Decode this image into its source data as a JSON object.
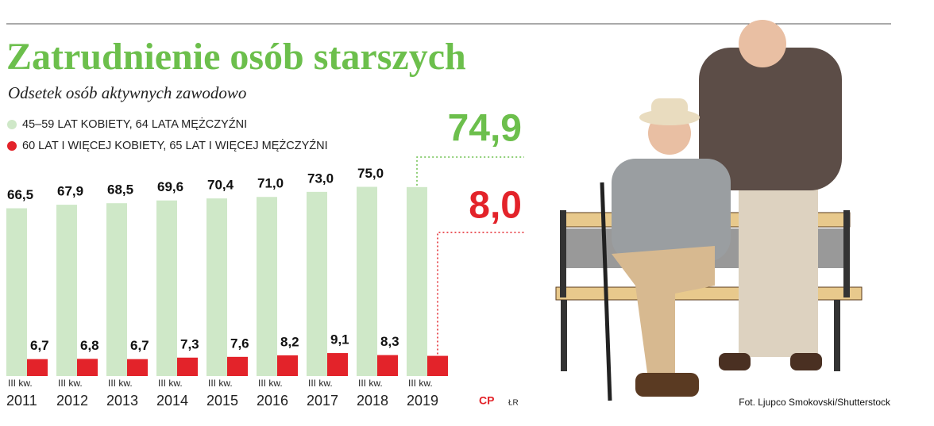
{
  "title": "Zatrudnienie osób starszych",
  "subtitle": "Odsetek osób aktywnych zawodowo",
  "chart_data": {
    "type": "bar",
    "period_label": "III kw.",
    "categories": [
      "2011",
      "2012",
      "2013",
      "2014",
      "2015",
      "2016",
      "2017",
      "2018",
      "2019"
    ],
    "ylim": [
      0,
      100
    ],
    "series": [
      {
        "name": "45–59 LAT KOBIETY, 64 LATA MĘŻCZYŹNI",
        "color": "#cfe8c8",
        "values": [
          66.5,
          67.9,
          68.5,
          69.6,
          70.4,
          71.0,
          73.0,
          75.0,
          74.9
        ],
        "value_labels": [
          "66,5",
          "67,9",
          "68,5",
          "69,6",
          "70,4",
          "71,0",
          "73,0",
          "75,0",
          "74,9"
        ]
      },
      {
        "name": "60 LAT I WIĘCEJ KOBIETY, 65 LAT I WIĘCEJ MĘŻCZYŹNI",
        "color": "#e3232a",
        "values": [
          6.7,
          6.8,
          6.7,
          7.3,
          7.6,
          8.2,
          9.1,
          8.3,
          8.0
        ],
        "value_labels": [
          "6,7",
          "6,8",
          "6,7",
          "7,3",
          "7,6",
          "8,2",
          "9,1",
          "8,3",
          "8,0"
        ]
      }
    ],
    "highlight_colors": [
      "#6cbf4c",
      "#e3232a"
    ]
  },
  "logo": "CP",
  "author": "ŁR",
  "photo_credit": "Fot. Ljupco Smokovski/Shutterstock"
}
